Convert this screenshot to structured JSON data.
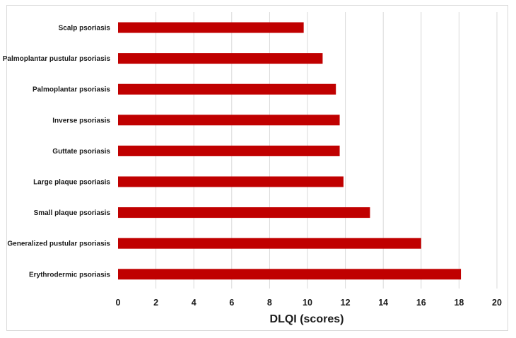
{
  "chart_data": {
    "type": "bar",
    "orientation": "horizontal",
    "categories": [
      "Scalp psoriasis",
      "Palmoplantar pustular psoriasis",
      "Palmoplantar psoriasis",
      "Inverse psoriasis",
      "Guttate psoriasis",
      "Large plaque psoriasis",
      "Small plaque psoriasis",
      "Generalized pustular psoriasis",
      "Erythrodermic psoriasis"
    ],
    "values": [
      9.8,
      10.8,
      11.5,
      11.7,
      11.7,
      11.9,
      13.3,
      16.0,
      18.1
    ],
    "title": "",
    "xlabel": "DLQI (scores)",
    "ylabel": "",
    "xlim": [
      0,
      20
    ],
    "xticks": [
      "0",
      "2",
      "4",
      "6",
      "8",
      "10",
      "12",
      "14",
      "16",
      "18",
      "20"
    ],
    "grid": "vertical",
    "legend": "none",
    "bar_color": "#c00000",
    "grid_color": "#d9d9d9"
  }
}
